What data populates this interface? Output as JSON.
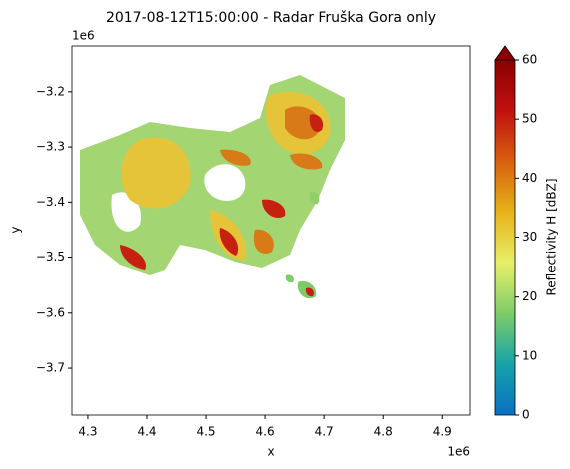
{
  "chart_data": {
    "type": "image",
    "title": "2017-08-12T15:00:00 - Radar Fruška Gora only",
    "xlabel": "x",
    "ylabel": "y",
    "x_offset": "1e6",
    "y_offset": "1e6",
    "xlim": [
      4273000,
      4947000
    ],
    "ylim": [
      -3785000,
      -3117000
    ],
    "xticks": [
      {
        "value": 4300000,
        "label": "4.3"
      },
      {
        "value": 4400000,
        "label": "4.4"
      },
      {
        "value": 4500000,
        "label": "4.5"
      },
      {
        "value": 4600000,
        "label": "4.6"
      },
      {
        "value": 4700000,
        "label": "4.7"
      },
      {
        "value": 4800000,
        "label": "4.8"
      },
      {
        "value": 4900000,
        "label": "4.9"
      }
    ],
    "yticks": [
      {
        "value": -3200000,
        "label": "−3.2"
      },
      {
        "value": -3300000,
        "label": "−3.3"
      },
      {
        "value": -3400000,
        "label": "−3.4"
      },
      {
        "value": -3500000,
        "label": "−3.5"
      },
      {
        "value": -3600000,
        "label": "−3.6"
      },
      {
        "value": -3700000,
        "label": "−3.7"
      }
    ],
    "colorbar": {
      "label": "Reflectivity H [dBZ]",
      "lim": [
        0,
        60
      ],
      "ticks": [
        0,
        10,
        20,
        30,
        40,
        50,
        60
      ],
      "extend": "max",
      "colors": [
        "#0a6fc4",
        "#16a3a8",
        "#7dcc6a",
        "#e8f06a",
        "#e7b21a",
        "#d8600f",
        "#c01010",
        "#8a0000"
      ]
    }
  }
}
